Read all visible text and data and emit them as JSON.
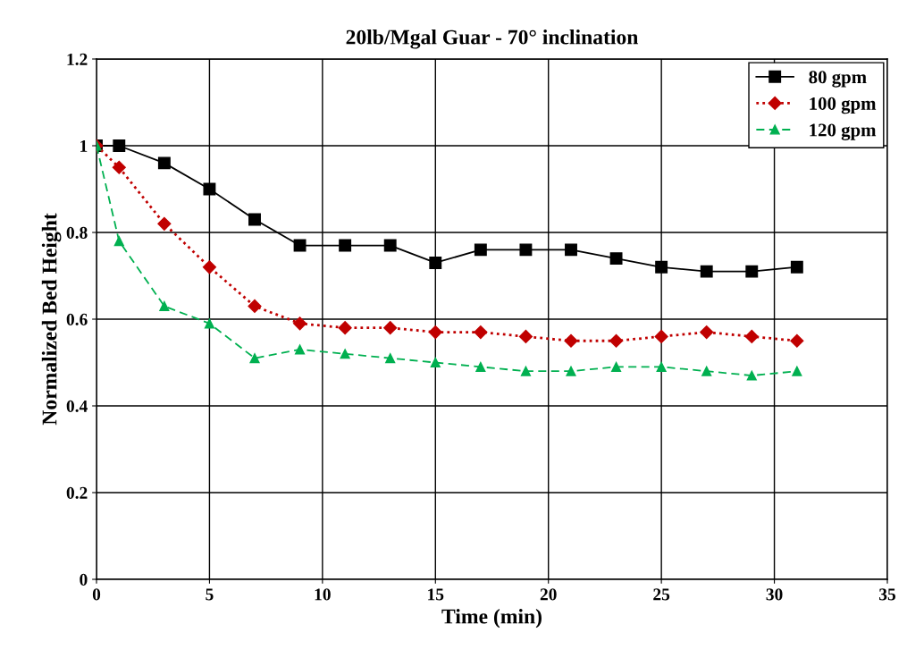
{
  "chart_data": {
    "type": "line",
    "title": "20lb/Mgal Guar - 70° inclination",
    "xlabel": "Time (min)",
    "ylabel": "Normalized Bed Height",
    "x": [
      0,
      1,
      3,
      5,
      7,
      9,
      11,
      13,
      15,
      17,
      19,
      21,
      23,
      25,
      27,
      29,
      31
    ],
    "series": [
      {
        "name": "80 gpm",
        "color": "#000000",
        "marker": "square",
        "line_style": "solid",
        "values": [
          1.0,
          1.0,
          0.96,
          0.9,
          0.83,
          0.77,
          0.77,
          0.77,
          0.73,
          0.76,
          0.76,
          0.76,
          0.74,
          0.72,
          0.71,
          0.71,
          0.72
        ]
      },
      {
        "name": "100 gpm",
        "color": "#c00000",
        "marker": "diamond",
        "line_style": "dotted",
        "values": [
          1.0,
          0.95,
          0.82,
          0.72,
          0.63,
          0.59,
          0.58,
          0.58,
          0.57,
          0.57,
          0.56,
          0.55,
          0.55,
          0.56,
          0.57,
          0.56,
          0.55
        ]
      },
      {
        "name": "120 gpm",
        "color": "#00b050",
        "marker": "triangle",
        "line_style": "dashed",
        "values": [
          1.0,
          0.78,
          0.63,
          0.59,
          0.51,
          0.53,
          0.52,
          0.51,
          0.5,
          0.49,
          0.48,
          0.48,
          0.49,
          0.49,
          0.48,
          0.47,
          0.48
        ]
      }
    ],
    "xlim": [
      0,
      35
    ],
    "xticks": [
      0,
      5,
      10,
      15,
      20,
      25,
      30,
      35
    ],
    "ylim": [
      0,
      1.2
    ],
    "yticks": [
      0,
      0.2,
      0.4,
      0.6,
      0.8,
      1,
      1.2
    ],
    "grid": true,
    "legend": "top right"
  }
}
